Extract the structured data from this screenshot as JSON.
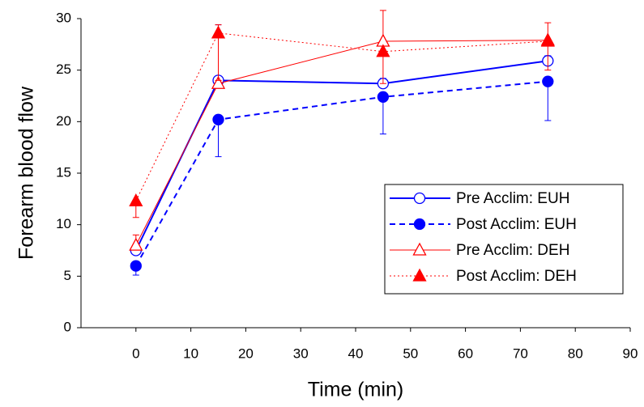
{
  "chart_data": {
    "type": "line",
    "x_label": "Time (min)",
    "y_label": "Forearm blood flow",
    "xlim": [
      -10,
      90
    ],
    "xticks": [
      0,
      10,
      20,
      30,
      40,
      50,
      60,
      70,
      80,
      90
    ],
    "ylim": [
      0,
      30
    ],
    "yticks": [
      0,
      5,
      10,
      15,
      20,
      25,
      30
    ],
    "x": [
      0,
      15,
      45,
      75
    ],
    "series": [
      {
        "name": "Pre Acclim: EUH",
        "color": "#0000ff",
        "line": "solid",
        "width": 2,
        "marker": "circle",
        "filled": false,
        "values": [
          7.5,
          24.0,
          23.7,
          25.9
        ],
        "errors": [
          0.5,
          5.4,
          0.5,
          0.5
        ],
        "error_side": "up"
      },
      {
        "name": "Post Acclim: EUH",
        "color": "#0000ff",
        "line": "dashed",
        "width": 2,
        "marker": "circle",
        "filled": true,
        "values": [
          6.0,
          20.2,
          22.4,
          23.9
        ],
        "errors": [
          0.9,
          3.6,
          3.6,
          3.8
        ],
        "error_side": "down"
      },
      {
        "name": "Pre Acclim: DEH",
        "color": "#ff0000",
        "line": "solid",
        "width": 1,
        "marker": "triangle",
        "filled": false,
        "values": [
          8.0,
          23.7,
          27.8,
          27.9
        ],
        "errors": [
          1.0,
          5.7,
          3.0,
          1.7
        ],
        "error_side": "up"
      },
      {
        "name": "Post Acclim: DEH",
        "color": "#ff0000",
        "line": "dotted",
        "width": 1,
        "marker": "triangle",
        "filled": true,
        "values": [
          12.3,
          28.6,
          26.8,
          27.8
        ],
        "errors": [
          1.6,
          4.6,
          3.1,
          2.8
        ],
        "error_side": "down"
      }
    ]
  }
}
